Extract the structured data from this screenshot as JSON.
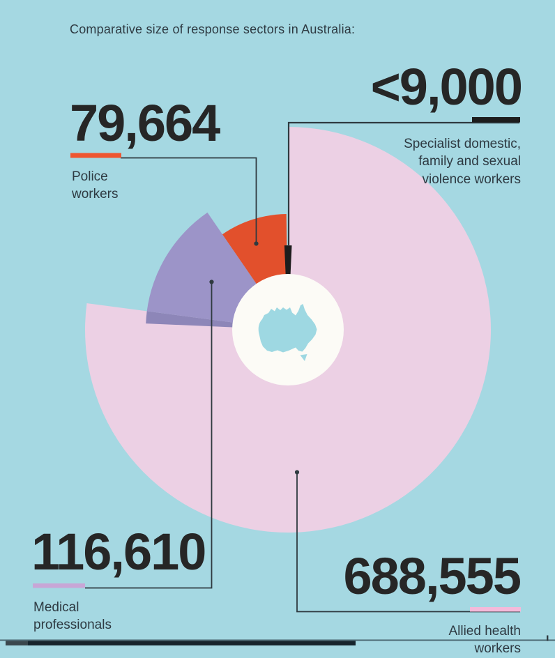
{
  "title": "Comparative size of response sectors in Australia:",
  "sectors": {
    "police": {
      "value": "79,664",
      "label": "Police\nworkers"
    },
    "specialist": {
      "value": "<9,000",
      "label": "Specialist domestic,\nfamily and sexual\nviolence workers"
    },
    "medical": {
      "value": "116,610",
      "label": "Medical\nprofessionals"
    },
    "allied": {
      "value": "688,555",
      "label": "Allied health\nworkers"
    }
  },
  "colors": {
    "background": "#a5d8e2",
    "number_text": "#262626",
    "label_text": "#2e3a42",
    "connector": "#2f3a40",
    "center_circle": "#fcfbf6",
    "australia_map": "#9ed8e2",
    "police_accent": "#ee5530",
    "specialist_accent": "#1d1d1d",
    "medical_accent": "#c8a6d6",
    "allied_accent": "#f4bada",
    "bottom_bar": "#16242c",
    "bottom_bar_left": "#3a474d",
    "bottom_divider": "#47626c"
  },
  "chart_data": {
    "type": "pie",
    "variant": "rose / nightingale style infographic; each sector's size represents workforce headcount",
    "title": "Comparative size of response sectors in Australia:",
    "legend_position": "callout labels with leader lines",
    "grid": false,
    "center": {
      "x": 413,
      "y": 473,
      "inner_circle_radius": 80
    },
    "angle_reference": "degrees clockwise from 12 o'clock",
    "center_icon": "australia-map",
    "series": [
      {
        "name": "allied-health-workers",
        "label": "Allied health workers",
        "value": 688555,
        "value_text": "688,555",
        "color": "#ecd0e4",
        "start_deg": 0,
        "end_deg": 277.5,
        "radius": 291
      },
      {
        "name": "medical-professionals",
        "label": "Medical professionals",
        "value": 116610,
        "value_text": "116,610",
        "color": "#9c94c8",
        "start_deg": 272.5,
        "end_deg": 325.5,
        "radius": 204
      },
      {
        "name": "police-workers",
        "label": "Police workers",
        "value": 79664,
        "value_text": "79,664",
        "color": "#e2502c",
        "start_deg": 325.5,
        "end_deg": 359.2,
        "radius": 166
      },
      {
        "name": "specialist-dfsv-workers",
        "label": "Specialist domestic, family and sexual violence workers",
        "value": 9000,
        "value_text": "<9,000",
        "qualifier": "less than",
        "color": "#1d1d1d",
        "start_deg": 357.6,
        "end_deg": 362.6,
        "radius": 121
      }
    ],
    "render_segments": [
      {
        "name": "allied-health-sector",
        "from": 0,
        "to": 277.5,
        "r": 291,
        "color": "#ecd0e4"
      },
      {
        "name": "medical-overlap-sector",
        "from": 272.5,
        "to": 277.5,
        "r": 204,
        "color": "#8d86b8"
      },
      {
        "name": "medical-sector",
        "from": 277.5,
        "to": 325.5,
        "r": 204,
        "color": "#9c94c8"
      },
      {
        "name": "police-sector",
        "from": 325.5,
        "to": 359.2,
        "r": 166,
        "color": "#e2502c"
      },
      {
        "name": "specialist-sector",
        "from": 357.6,
        "to": 362.6,
        "r": 121,
        "color": "#1d1d1d"
      }
    ]
  }
}
